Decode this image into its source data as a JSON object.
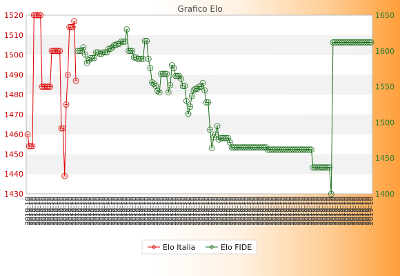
{
  "chart_data": {
    "type": "line",
    "title": "Grafico Elo",
    "grid": "horizontal bands",
    "legend_position": "bottom-center",
    "y_left": {
      "min": 1430,
      "max": 1520,
      "ticks": [
        1430,
        1440,
        1450,
        1460,
        1470,
        1480,
        1490,
        1500,
        1510,
        1520
      ]
    },
    "y_right": {
      "min": 1400,
      "max": 1650,
      "ticks": [
        1400,
        1450,
        1500,
        1550,
        1600,
        1650
      ]
    },
    "x_tick_label": "2019-10",
    "series": [
      {
        "name": "Elo Italia",
        "axis": "left",
        "color": "#dd0000",
        "values": [
          1460,
          1454,
          1454,
          1454,
          1520,
          1520,
          1520,
          1520,
          1520,
          1484,
          1484,
          1484,
          1484,
          1484,
          1484,
          1502,
          1502,
          1502,
          1502,
          1502,
          1502,
          1463,
          1463,
          1439,
          1475,
          1490,
          1514,
          1514,
          1514,
          1517,
          1487
        ]
      },
      {
        "name": "Elo FIDE",
        "axis": "right",
        "color": "#1a6e1a",
        "values": [
          1600,
          1600,
          1600,
          1605,
          1595,
          1583,
          1587,
          1590,
          1590,
          1590,
          1598,
          1598,
          1596,
          1596,
          1598,
          1598,
          1598,
          1603,
          1603,
          1605,
          1608,
          1608,
          1610,
          1610,
          1613,
          1613,
          1613,
          1630,
          1600,
          1600,
          1600,
          1591,
          1591,
          1589,
          1589,
          1589,
          1589,
          1614,
          1614,
          1589,
          1576,
          1556,
          1554,
          1551,
          1544,
          1542,
          1568,
          1568,
          1568,
          1568,
          1542,
          1552,
          1580,
          1576,
          1565,
          1565,
          1565,
          1561,
          1551,
          1551,
          1530,
          1512,
          1522,
          1537,
          1545,
          1547,
          1547,
          1550,
          1550,
          1555,
          1545,
          1528,
          1528,
          1490,
          1464,
          1479,
          1483,
          1495,
          1476,
          1478,
          1478,
          1478,
          1478,
          1478,
          1472,
          1465,
          1465,
          1465,
          1465,
          1465,
          1465,
          1465,
          1465,
          1465,
          1465,
          1465,
          1465,
          1465,
          1465,
          1465,
          1465,
          1465,
          1465,
          1465,
          1465,
          1462,
          1462,
          1462,
          1462,
          1462,
          1462,
          1462,
          1462,
          1462,
          1462,
          1462,
          1462,
          1462,
          1462,
          1462,
          1462,
          1462,
          1462,
          1462,
          1462,
          1462,
          1462,
          1462,
          1462,
          1462,
          1437,
          1437,
          1437,
          1437,
          1437,
          1437,
          1437,
          1437,
          1437,
          1437,
          1400,
          1612,
          1612,
          1612,
          1612,
          1612,
          1612,
          1612,
          1612,
          1612,
          1612,
          1612,
          1612,
          1612,
          1612,
          1612,
          1612,
          1612,
          1612,
          1612,
          1612,
          1612,
          1612
        ]
      }
    ]
  }
}
